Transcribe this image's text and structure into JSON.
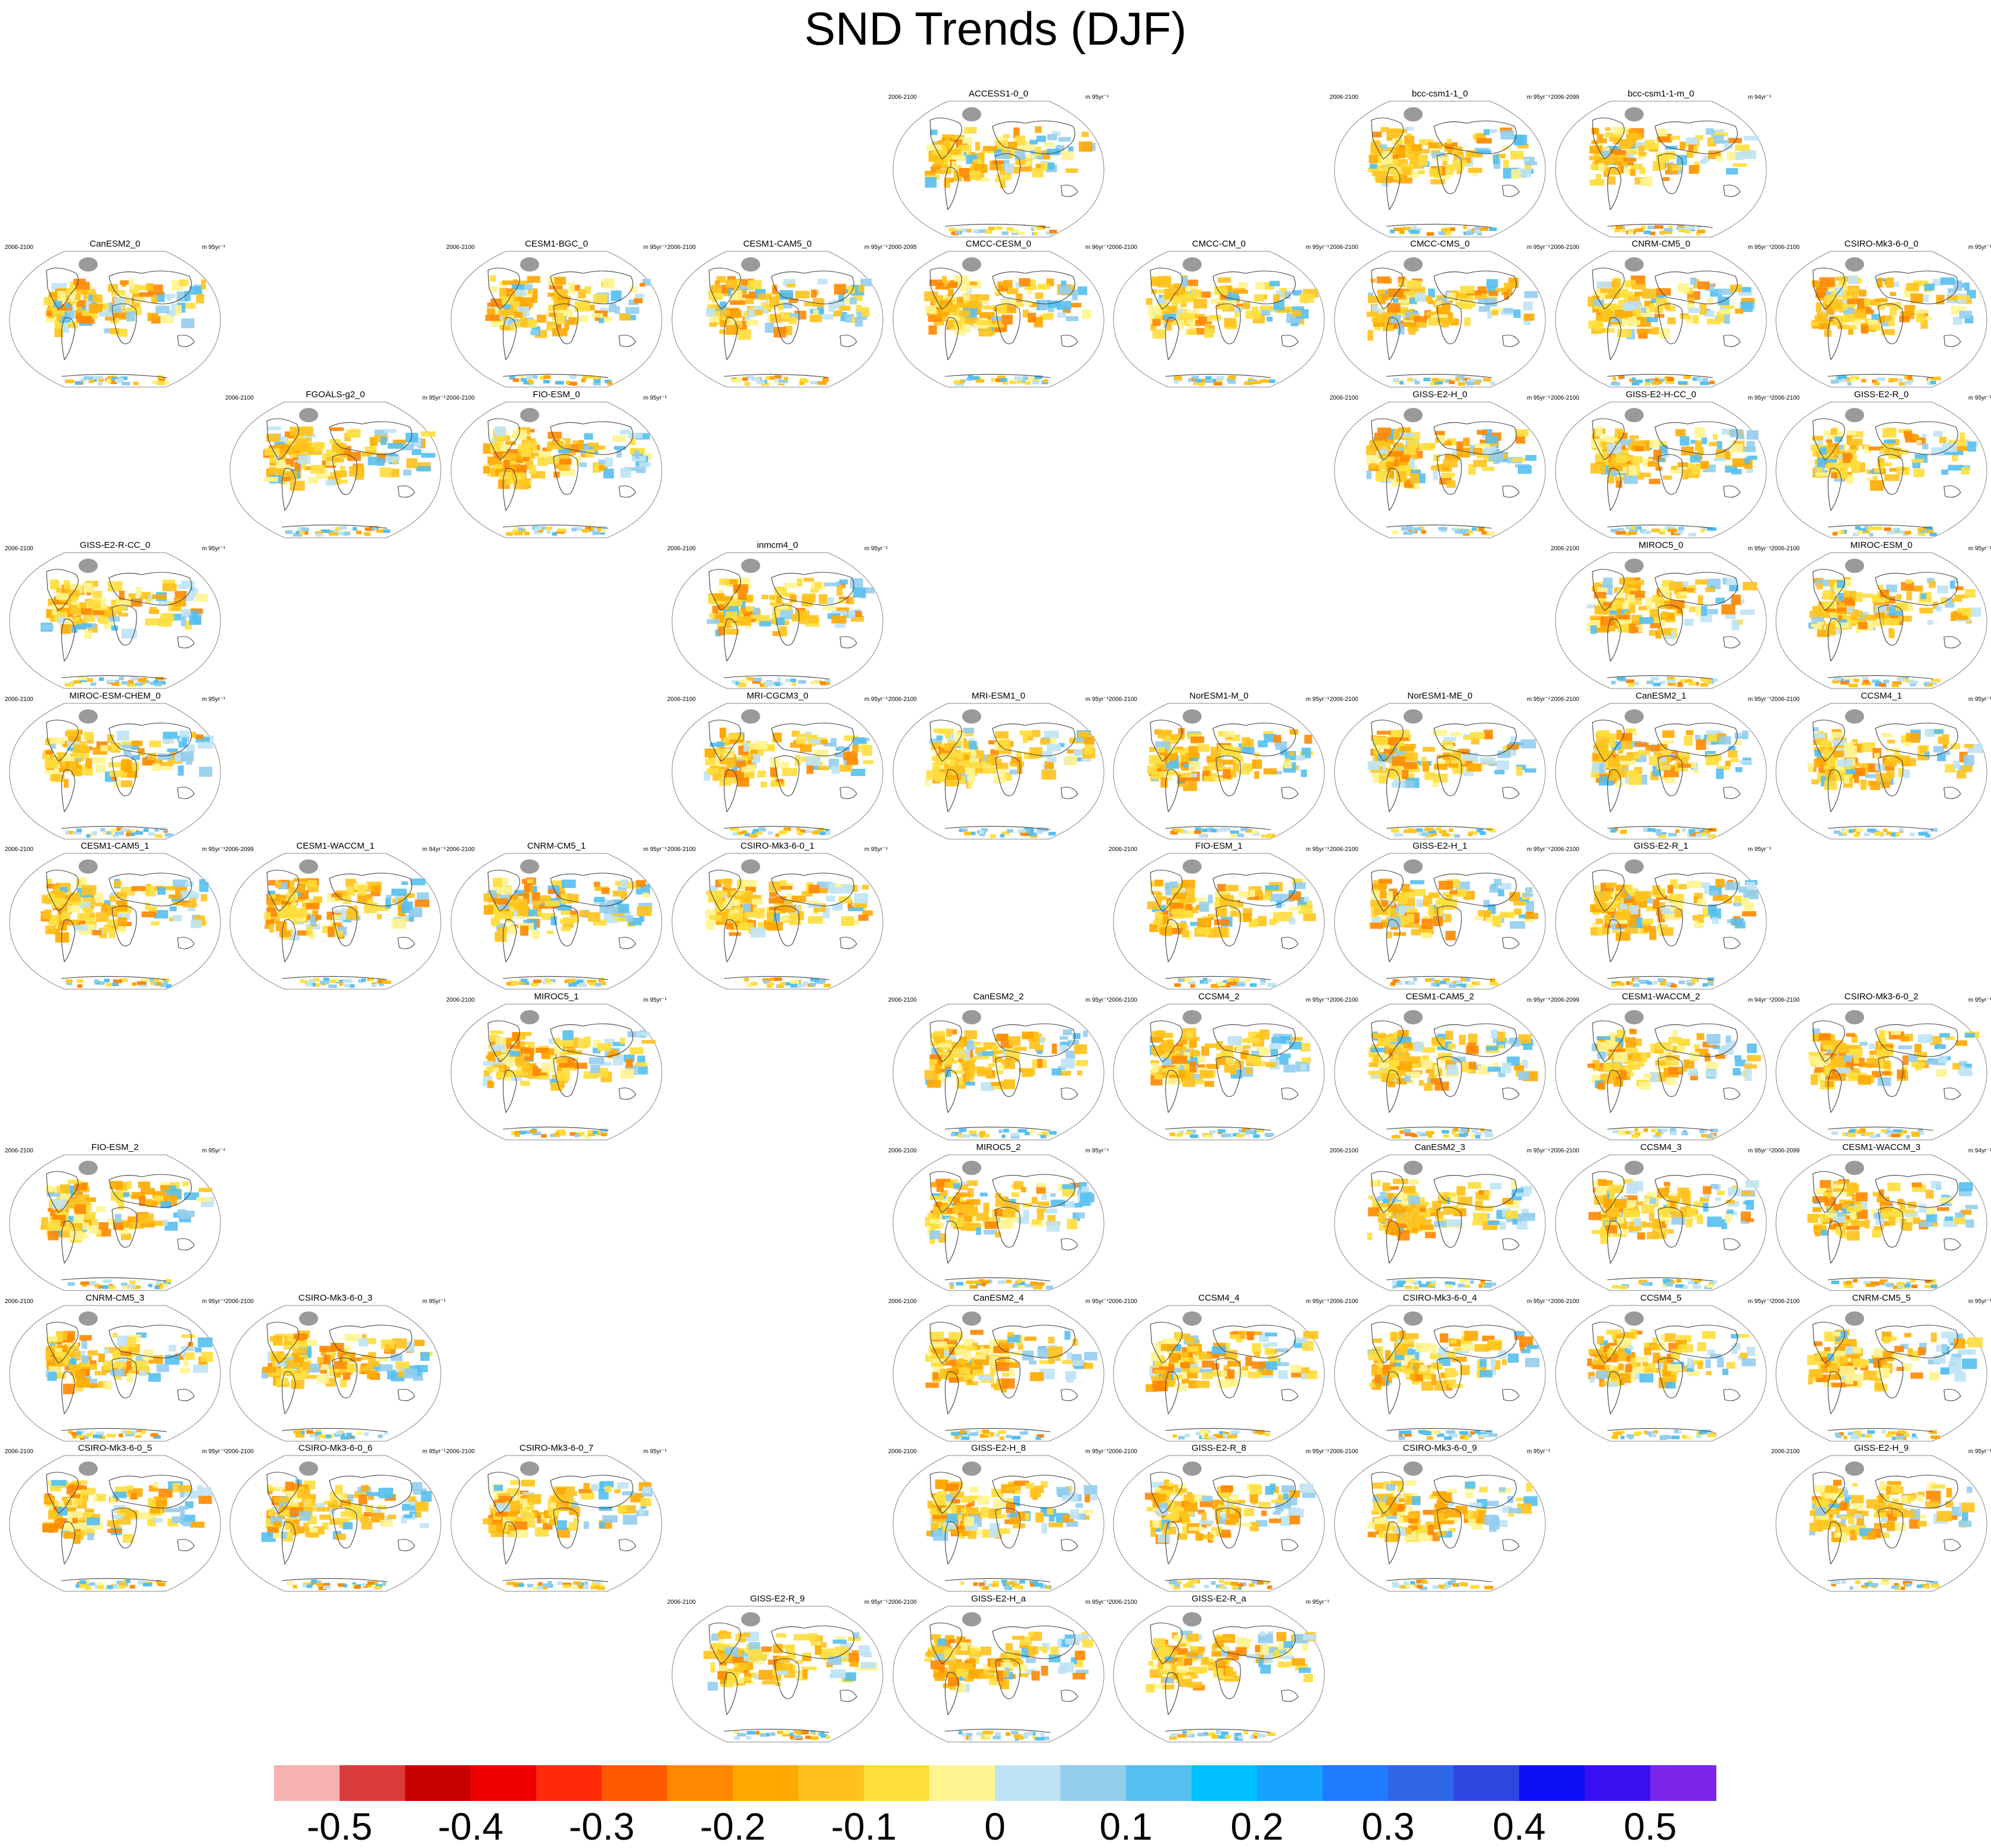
{
  "title": "SND Trends (DJF)",
  "chart_data": {
    "type": "heatmap",
    "title": "SND Trends (DJF)",
    "description_kind": "panel grid of global snow depth trend maps (Robinson projection), one per model run",
    "colorbar": {
      "ticks": [
        "-0.5",
        "-0.4",
        "-0.3",
        "-0.2",
        "-0.1",
        "0",
        "0.1",
        "0.2",
        "0.3",
        "0.4",
        "0.5"
      ],
      "colors": [
        "#f8b2b2",
        "#d93b3b",
        "#c80000",
        "#ee0000",
        "#ff2a0a",
        "#ff5a00",
        "#ff8800",
        "#ffa900",
        "#ffc21c",
        "#ffde3c",
        "#fff490",
        "#bfe3f5",
        "#93cdee",
        "#55bfef",
        "#00c0ff",
        "#16a3ff",
        "#1e7cff",
        "#2e66e6",
        "#2e45e0",
        "#0d0df6",
        "#3a10f2",
        "#7b26e8"
      ]
    },
    "panels": [
      {
        "name": "ACCESS1-0_0",
        "period": "2006-2100",
        "units": "m 95yr⁻¹",
        "row": 0,
        "col": 4
      },
      {
        "name": "bcc-csm1-1_0",
        "period": "2006-2100",
        "units": "m 95yr⁻¹",
        "row": 0,
        "col": 6
      },
      {
        "name": "bcc-csm1-1-m_0",
        "period": "2006-2099",
        "units": "m 94yr⁻¹",
        "row": 0,
        "col": 7
      },
      {
        "name": "CanESM2_0",
        "period": "2006-2100",
        "units": "m 95yr⁻¹",
        "row": 1,
        "col": 0
      },
      {
        "name": "CESM1-BGC_0",
        "period": "2006-2100",
        "units": "m 95yr⁻¹",
        "row": 1,
        "col": 2
      },
      {
        "name": "CESM1-CAM5_0",
        "period": "2006-2100",
        "units": "m 95yr⁻¹",
        "row": 1,
        "col": 3
      },
      {
        "name": "CMCC-CESM_0",
        "period": "2000-2095",
        "units": "m 96yr⁻¹",
        "row": 1,
        "col": 4
      },
      {
        "name": "CMCC-CM_0",
        "period": "2006-2100",
        "units": "m 95yr⁻¹",
        "row": 1,
        "col": 5
      },
      {
        "name": "CMCC-CMS_0",
        "period": "2006-2100",
        "units": "m 95yr⁻¹",
        "row": 1,
        "col": 6
      },
      {
        "name": "CNRM-CM5_0",
        "period": "2006-2100",
        "units": "m 95yr⁻¹",
        "row": 1,
        "col": 7
      },
      {
        "name": "CSIRO-Mk3-6-0_0",
        "period": "2006-2100",
        "units": "m 95yr⁻¹",
        "row": 1,
        "col": 8
      },
      {
        "name": "FGOALS-g2_0",
        "period": "2006-2100",
        "units": "m 95yr⁻¹",
        "row": 2,
        "col": 1
      },
      {
        "name": "FIO-ESM_0",
        "period": "2006-2100",
        "units": "m 95yr⁻¹",
        "row": 2,
        "col": 2
      },
      {
        "name": "GISS-E2-H_0",
        "period": "2006-2100",
        "units": "m 95yr⁻¹",
        "row": 2,
        "col": 6
      },
      {
        "name": "GISS-E2-H-CC_0",
        "period": "2006-2100",
        "units": "m 95yr⁻¹",
        "row": 2,
        "col": 7
      },
      {
        "name": "GISS-E2-R_0",
        "period": "2006-2100",
        "units": "m 95yr⁻¹",
        "row": 2,
        "col": 8
      },
      {
        "name": "GISS-E2-R-CC_0",
        "period": "2006-2100",
        "units": "m 95yr⁻¹",
        "row": 3,
        "col": 0
      },
      {
        "name": "inmcm4_0",
        "period": "2006-2100",
        "units": "m 95yr⁻¹",
        "row": 3,
        "col": 3
      },
      {
        "name": "MIROC5_0",
        "period": "2006-2100",
        "units": "m 95yr⁻¹",
        "row": 3,
        "col": 7
      },
      {
        "name": "MIROC-ESM_0",
        "period": "2006-2100",
        "units": "m 95yr⁻¹",
        "row": 3,
        "col": 8
      },
      {
        "name": "MIROC-ESM-CHEM_0",
        "period": "2006-2100",
        "units": "m 95yr⁻¹",
        "row": 4,
        "col": 0
      },
      {
        "name": "MRI-CGCM3_0",
        "period": "2006-2100",
        "units": "m 95yr⁻¹",
        "row": 4,
        "col": 3
      },
      {
        "name": "MRI-ESM1_0",
        "period": "2006-2100",
        "units": "m 95yr⁻¹",
        "row": 4,
        "col": 4
      },
      {
        "name": "NorESM1-M_0",
        "period": "2006-2100",
        "units": "m 95yr⁻¹",
        "row": 4,
        "col": 5
      },
      {
        "name": "NorESM1-ME_0",
        "period": "2006-2100",
        "units": "m 95yr⁻¹",
        "row": 4,
        "col": 6
      },
      {
        "name": "CanESM2_1",
        "period": "2006-2100",
        "units": "m 95yr⁻¹",
        "row": 4,
        "col": 7
      },
      {
        "name": "CCSM4_1",
        "period": "2006-2100",
        "units": "m 95yr⁻¹",
        "row": 4,
        "col": 8
      },
      {
        "name": "CESM1-CAM5_1",
        "period": "2006-2100",
        "units": "m 95yr⁻¹",
        "row": 5,
        "col": 0
      },
      {
        "name": "CESM1-WACCM_1",
        "period": "2006-2099",
        "units": "m 94yr⁻¹",
        "row": 5,
        "col": 1
      },
      {
        "name": "CNRM-CM5_1",
        "period": "2006-2100",
        "units": "m 95yr⁻¹",
        "row": 5,
        "col": 2
      },
      {
        "name": "CSIRO-Mk3-6-0_1",
        "period": "2006-2100",
        "units": "m 95yr⁻¹",
        "row": 5,
        "col": 3
      },
      {
        "name": "FIO-ESM_1",
        "period": "2006-2100",
        "units": "m 95yr⁻¹",
        "row": 5,
        "col": 5
      },
      {
        "name": "GISS-E2-H_1",
        "period": "2006-2100",
        "units": "m 95yr⁻¹",
        "row": 5,
        "col": 6
      },
      {
        "name": "GISS-E2-R_1",
        "period": "2006-2100",
        "units": "m 95yr⁻¹",
        "row": 5,
        "col": 7
      },
      {
        "name": "MIROC5_1",
        "period": "2006-2100",
        "units": "m 95yr⁻¹",
        "row": 6,
        "col": 2
      },
      {
        "name": "CanESM2_2",
        "period": "2006-2100",
        "units": "m 95yr⁻¹",
        "row": 6,
        "col": 4
      },
      {
        "name": "CCSM4_2",
        "period": "2006-2100",
        "units": "m 95yr⁻¹",
        "row": 6,
        "col": 5
      },
      {
        "name": "CESM1-CAM5_2",
        "period": "2006-2100",
        "units": "m 95yr⁻¹",
        "row": 6,
        "col": 6
      },
      {
        "name": "CESM1-WACCM_2",
        "period": "2006-2099",
        "units": "m 94yr⁻¹",
        "row": 6,
        "col": 7
      },
      {
        "name": "CSIRO-Mk3-6-0_2",
        "period": "2006-2100",
        "units": "m 95yr⁻¹",
        "row": 6,
        "col": 8
      },
      {
        "name": "FIO-ESM_2",
        "period": "2006-2100",
        "units": "m 95yr⁻¹",
        "row": 7,
        "col": 0
      },
      {
        "name": "MIROC5_2",
        "period": "2006-2100",
        "units": "m 95yr⁻¹",
        "row": 7,
        "col": 4
      },
      {
        "name": "CanESM2_3",
        "period": "2006-2100",
        "units": "m 95yr⁻¹",
        "row": 7,
        "col": 6
      },
      {
        "name": "CCSM4_3",
        "period": "2006-2100",
        "units": "m 95yr⁻¹",
        "row": 7,
        "col": 7
      },
      {
        "name": "CESM1-WACCM_3",
        "period": "2006-2099",
        "units": "m 94yr⁻¹",
        "row": 7,
        "col": 8
      },
      {
        "name": "CNRM-CM5_3",
        "period": "2006-2100",
        "units": "m 95yr⁻¹",
        "row": 8,
        "col": 0
      },
      {
        "name": "CSIRO-Mk3-6-0_3",
        "period": "2006-2100",
        "units": "m 95yr⁻¹",
        "row": 8,
        "col": 1
      },
      {
        "name": "CanESM2_4",
        "period": "2006-2100",
        "units": "m 95yr⁻¹",
        "row": 8,
        "col": 4
      },
      {
        "name": "CCSM4_4",
        "period": "2006-2100",
        "units": "m 95yr⁻¹",
        "row": 8,
        "col": 5
      },
      {
        "name": "CSIRO-Mk3-6-0_4",
        "period": "2006-2100",
        "units": "m 95yr⁻¹",
        "row": 8,
        "col": 6
      },
      {
        "name": "CCSM4_5",
        "period": "2006-2100",
        "units": "m 95yr⁻¹",
        "row": 8,
        "col": 7
      },
      {
        "name": "CNRM-CM5_5",
        "period": "2006-2100",
        "units": "m 95yr⁻¹",
        "row": 8,
        "col": 8
      },
      {
        "name": "CSIRO-Mk3-6-0_5",
        "period": "2006-2100",
        "units": "m 95yr⁻¹",
        "row": 9,
        "col": 0
      },
      {
        "name": "CSIRO-Mk3-6-0_6",
        "period": "2006-2100",
        "units": "m 95yr⁻¹",
        "row": 9,
        "col": 1
      },
      {
        "name": "CSIRO-Mk3-6-0_7",
        "period": "2006-2100",
        "units": "m 95yr⁻¹",
        "row": 9,
        "col": 2
      },
      {
        "name": "GISS-E2-H_8",
        "period": "2006-2100",
        "units": "m 95yr⁻¹",
        "row": 9,
        "col": 4
      },
      {
        "name": "GISS-E2-R_8",
        "period": "2006-2100",
        "units": "m 95yr⁻¹",
        "row": 9,
        "col": 5
      },
      {
        "name": "CSIRO-Mk3-6-0_9",
        "period": "2006-2100",
        "units": "m 95yr⁻¹",
        "row": 9,
        "col": 6
      },
      {
        "name": "GISS-E2-H_9",
        "period": "2006-2100",
        "units": "m 95yr⁻¹",
        "row": 9,
        "col": 8
      },
      {
        "name": "GISS-E2-R_9",
        "period": "2006-2100",
        "units": "m 95yr⁻¹",
        "row": 10,
        "col": 3
      },
      {
        "name": "GISS-E2-H_a",
        "period": "2006-2100",
        "units": "m 95yr⁻¹",
        "row": 10,
        "col": 4
      },
      {
        "name": "GISS-E2-R_a",
        "period": "2006-2100",
        "units": "m 95yr⁻¹",
        "row": 10,
        "col": 5
      }
    ]
  }
}
